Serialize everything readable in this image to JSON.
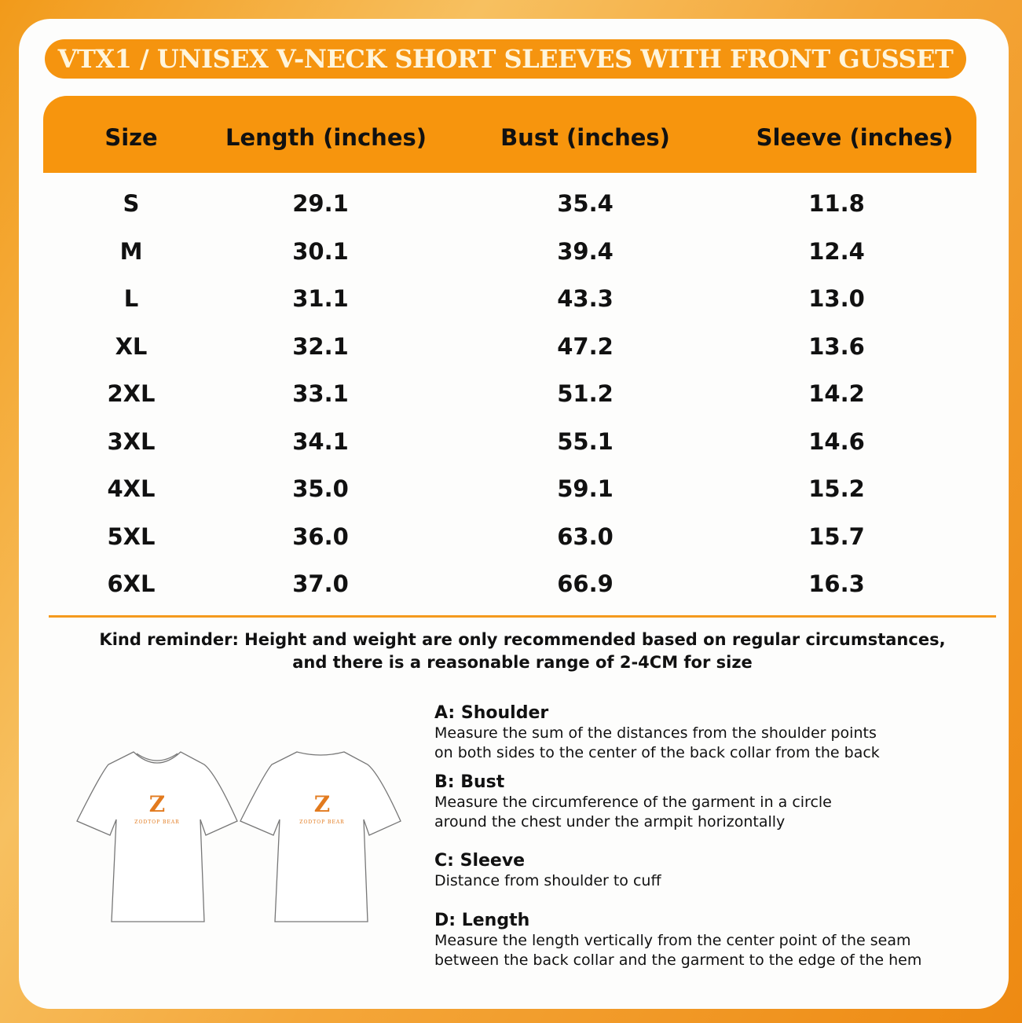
{
  "title": "VTX1 / UNISEX V-NECK SHORT SLEEVES WITH FRONT GUSSET",
  "table": {
    "headers": [
      "Size",
      "Length (inches)",
      "Bust (inches)",
      "Sleeve (inches)"
    ],
    "rows": [
      [
        "S",
        "29.1",
        "35.4",
        "11.8"
      ],
      [
        "M",
        "30.1",
        "39.4",
        "12.4"
      ],
      [
        "L",
        "31.1",
        "43.3",
        "13.0"
      ],
      [
        "XL",
        "32.1",
        "47.2",
        "13.6"
      ],
      [
        "2XL",
        "33.1",
        "51.2",
        "14.2"
      ],
      [
        "3XL",
        "34.1",
        "55.1",
        "14.6"
      ],
      [
        "4XL",
        "35.0",
        "59.1",
        "15.2"
      ],
      [
        "5XL",
        "36.0",
        "63.0",
        "15.7"
      ],
      [
        "6XL",
        "37.0",
        "66.9",
        "16.3"
      ]
    ]
  },
  "reminder": {
    "line1": "Kind reminder: Height and weight are only recommended based on regular circumstances,",
    "line2": "and there is a reasonable range of 2-4CM for size"
  },
  "logo_text": "ZODTOP BEAR",
  "measurements": [
    {
      "title": "A: Shoulder",
      "lines": [
        "Measure the sum of the distances from the shoulder points",
        "on both sides to the center of the back collar from the back"
      ]
    },
    {
      "title": "B: Bust",
      "lines": [
        "Measure the circumference of the garment in a circle",
        "around the chest under the armpit horizontally"
      ]
    },
    {
      "title": "C: Sleeve",
      "lines": [
        "Distance from shoulder to cuff"
      ]
    },
    {
      "title": "D: Length",
      "lines": [
        "Measure the length vertically from the center point of the seam",
        "between the back collar and the garment to the edge of the hem"
      ]
    }
  ],
  "colors": {
    "accent": "#f7950d",
    "title_text": "#fff5dc",
    "divider": "#f59a1e"
  }
}
